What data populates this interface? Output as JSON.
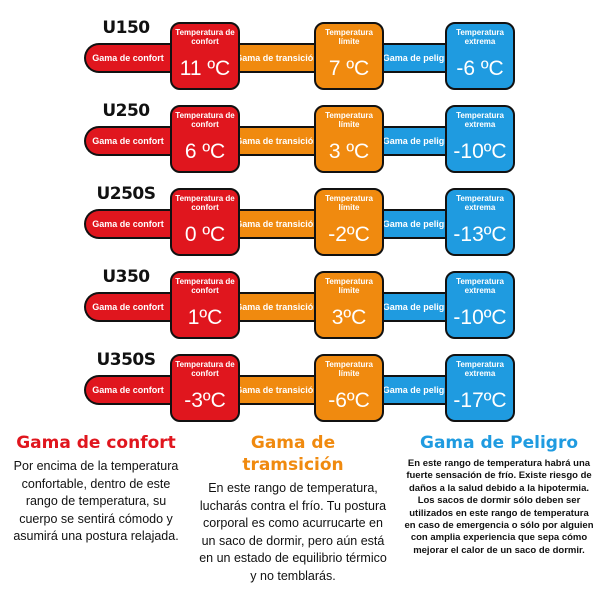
{
  "rows": [
    {
      "model": "U150",
      "comfort": "11 ºC",
      "limit": "7 ºC",
      "extreme": "-6 ºC"
    },
    {
      "model": "U250",
      "comfort": "6 ºC",
      "limit": "3 ºC",
      "extreme": "-10ºC"
    },
    {
      "model": "U250S",
      "comfort": "0 ºC",
      "limit": "-2ºC",
      "extreme": "-13ºC"
    },
    {
      "model": "U350",
      "comfort": "1ºC",
      "limit": "3ºC",
      "extreme": "-10ºC"
    },
    {
      "model": "U350S",
      "comfort": "-3ºC",
      "limit": "-6ºC",
      "extreme": "-17ºC"
    }
  ],
  "labels": {
    "comfort_range": "Gama de confort",
    "transition_range": "Gama de transición",
    "danger_range": "Gama de peligro",
    "comfort_temp": "Temperatura de confort",
    "limit_temp": "Temperatura límite",
    "extreme_temp": "Temperatura extrema"
  },
  "legend": {
    "comfort": {
      "title": "Gama de confort",
      "text": "Por encima de la temperatura confortable, dentro de este rango de temperatura, su cuerpo se sentirá cómodo y asumirá una postura relajada."
    },
    "transition": {
      "title": "Gama de tramsición",
      "text": "En este rango de temperatura, lucharás contra el frío. Tu postura corporal es como acurrucarte en un saco de dormir, pero aún está en un estado de equilibrio térmico y no temblarás."
    },
    "danger": {
      "title": "Gama de Peligro",
      "text": "En este rango de temperatura habrá una fuerte sensación de frío. Existe riesgo de daños a la salud debido a la hipotermia. Los sacos de dormir sólo deben ser utilizados en este rango de temperatura en caso de emergencia o sólo por alguien con amplia experiencia que sepa cómo mejorar el calor de un saco de dormir."
    }
  },
  "colors": {
    "comfort": "#e0161e",
    "transition": "#f08a0f",
    "danger": "#1f9be0"
  }
}
